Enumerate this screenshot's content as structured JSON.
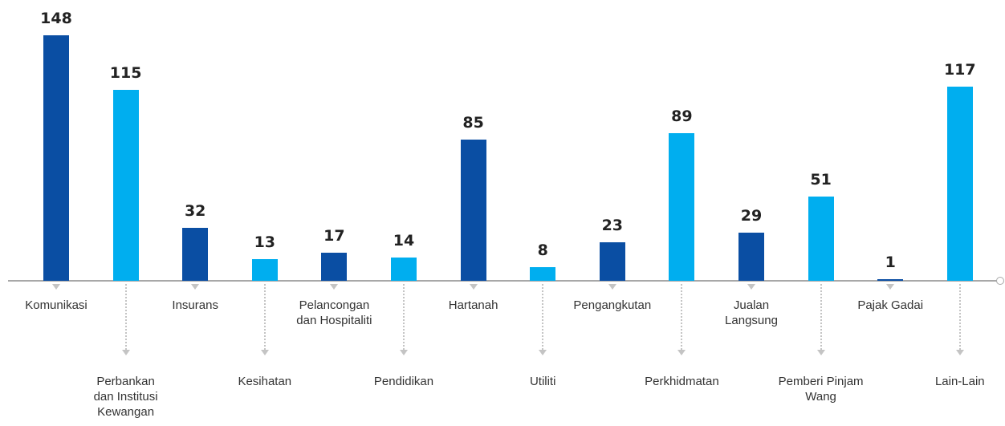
{
  "chart_data": {
    "type": "bar",
    "categories": [
      "Komunikasi",
      "Perbankan dan Institusi Kewangan",
      "Insurans",
      "Kesihatan",
      "Pelancongan dan Hospitaliti",
      "Pendidikan",
      "Hartanah",
      "Utiliti",
      "Pengangkutan",
      "Perkhidmatan",
      "Jualan Langsung",
      "Pemberi Pinjam Wang",
      "Pajak Gadai",
      "Lain-Lain"
    ],
    "values": [
      148,
      115,
      32,
      13,
      17,
      14,
      85,
      8,
      23,
      89,
      29,
      51,
      1,
      117
    ],
    "colors": [
      "#0a4ea3",
      "#00aeef",
      "#0a4ea3",
      "#00aeef",
      "#0a4ea3",
      "#00aeef",
      "#0a4ea3",
      "#00aeef",
      "#0a4ea3",
      "#00aeef",
      "#0a4ea3",
      "#00aeef",
      "#0a4ea3",
      "#00aeef"
    ]
  }
}
